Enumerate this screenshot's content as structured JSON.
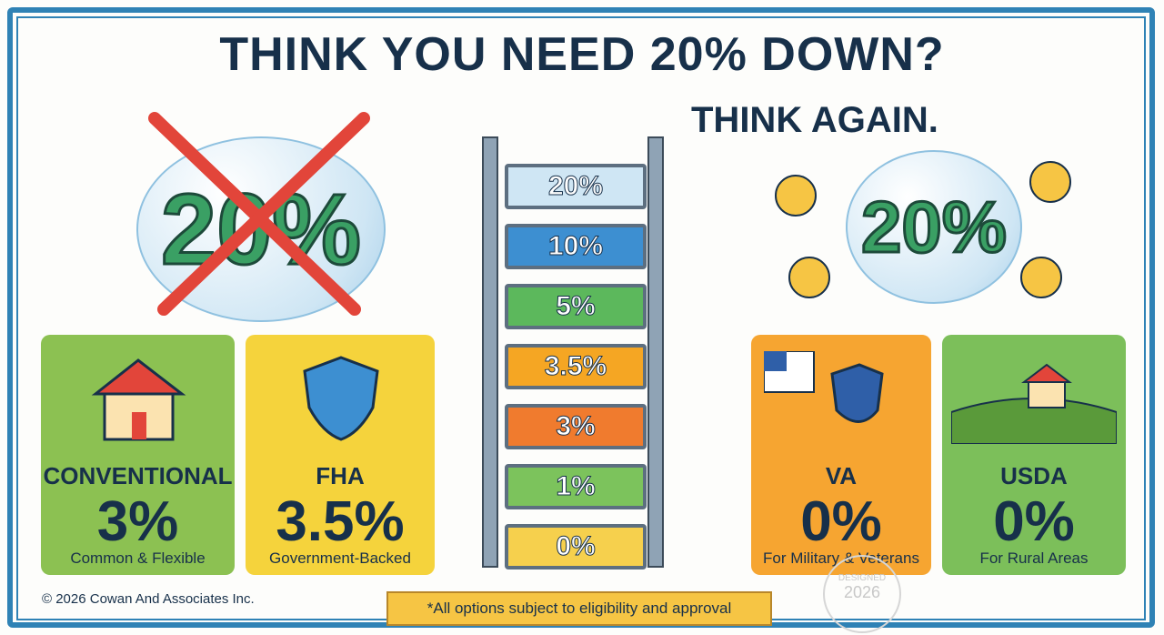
{
  "header": {
    "title": "THINK YOU NEED 20% DOWN?",
    "subtitle": "THINK AGAIN."
  },
  "bubbles": {
    "left": "20%",
    "right": "20%"
  },
  "ladder": {
    "rungs": [
      "20%",
      "10%",
      "5%",
      "3.5%",
      "3%",
      "1%",
      "0%"
    ]
  },
  "cards": [
    {
      "name": "CONVENTIONAL",
      "rate": "3%",
      "note": "Common & Flexible"
    },
    {
      "name": "FHA",
      "rate": "3.5%",
      "note": "Government-Backed"
    },
    {
      "name": "VA",
      "rate": "0%",
      "note": "For Military & Veterans"
    },
    {
      "name": "USDA",
      "rate": "0%",
      "note": "For Rural Areas"
    }
  ],
  "footer": {
    "copyright": "© 2026 Cowan And Associates Inc.",
    "disclaimer": "*All options subject to eligibility and approval",
    "stamp": [
      "DESIGNED",
      "2026"
    ]
  }
}
